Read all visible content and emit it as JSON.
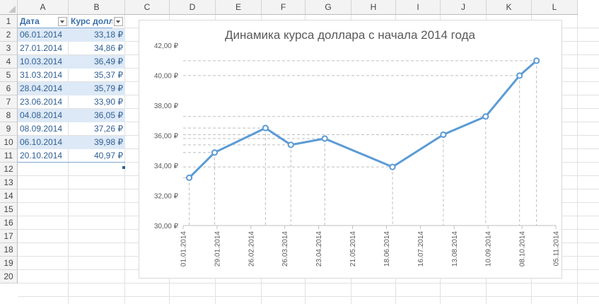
{
  "sheet": {
    "columns": [
      "A",
      "B",
      "C",
      "D",
      "E",
      "F",
      "G",
      "H",
      "I",
      "J",
      "K",
      "L"
    ],
    "rows": [
      "1",
      "2",
      "3",
      "4",
      "5",
      "6",
      "7",
      "8",
      "9",
      "10",
      "11",
      "12",
      "13",
      "14",
      "15",
      "16",
      "17",
      "18",
      "19",
      "20"
    ]
  },
  "table": {
    "headers": [
      "Дата",
      "Курс доллара"
    ],
    "rows": [
      {
        "date": "06.01.2014",
        "rate": "33,18 ₽"
      },
      {
        "date": "27.01.2014",
        "rate": "34,86 ₽"
      },
      {
        "date": "10.03.2014",
        "rate": "36,49 ₽"
      },
      {
        "date": "31.03.2014",
        "rate": "35,37 ₽"
      },
      {
        "date": "28.04.2014",
        "rate": "35,79 ₽"
      },
      {
        "date": "23.06.2014",
        "rate": "33,90 ₽"
      },
      {
        "date": "04.08.2014",
        "rate": "36,05 ₽"
      },
      {
        "date": "08.09.2014",
        "rate": "37,26 ₽"
      },
      {
        "date": "06.10.2014",
        "rate": "39,98 ₽"
      },
      {
        "date": "20.10.2014",
        "rate": "40,97 ₽"
      }
    ]
  },
  "chart_data": {
    "type": "line",
    "title": "Динамика курса доллара с начала 2014 года",
    "xlabel": "",
    "ylabel": "",
    "x": [
      "2014-01-06",
      "2014-01-27",
      "2014-03-10",
      "2014-03-31",
      "2014-04-28",
      "2014-06-23",
      "2014-08-04",
      "2014-09-08",
      "2014-10-06",
      "2014-10-20"
    ],
    "series": [
      {
        "values": [
          33.18,
          34.86,
          36.49,
          35.37,
          35.79,
          33.9,
          36.05,
          37.26,
          39.98,
          40.97
        ]
      }
    ],
    "ylim": [
      30,
      42
    ],
    "xlim": [
      "2014-01-01",
      "2014-11-05"
    ],
    "y_ticks": [
      "30,00 ₽",
      "32,00 ₽",
      "34,00 ₽",
      "36,00 ₽",
      "38,00 ₽",
      "40,00 ₽",
      "42,00 ₽"
    ],
    "x_tick_dates": [
      "2014-01-01",
      "2014-01-29",
      "2014-02-26",
      "2014-03-26",
      "2014-04-23",
      "2014-05-21",
      "2014-06-18",
      "2014-07-16",
      "2014-08-13",
      "2014-09-10",
      "2014-10-08",
      "2014-11-05"
    ],
    "x_ticks": [
      "01.01.2014",
      "29.01.2014",
      "26.02.2014",
      "26.03.2014",
      "23.04.2014",
      "21.05.2014",
      "18.06.2014",
      "16.07.2014",
      "13.08.2014",
      "10.09.2014",
      "08.10.2014",
      "05.11.2014"
    ],
    "grid": false,
    "drop_lines": true,
    "line_color": "#5b9bd5",
    "marker": "hollow-circle"
  }
}
